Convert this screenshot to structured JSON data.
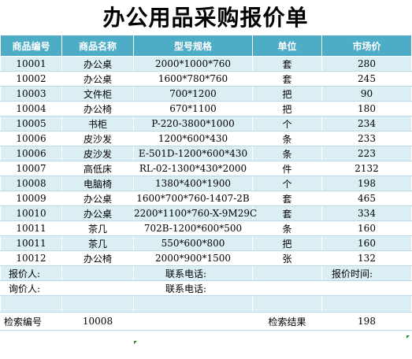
{
  "title": "办公用品采购报价单",
  "columns": [
    "商品编号",
    "商品名称",
    "型号规格",
    "单位",
    "市场价"
  ],
  "rows": [
    {
      "id": "10001",
      "name": "办公桌",
      "spec": "2000*1000*760",
      "unit": "套",
      "price": "280"
    },
    {
      "id": "10002",
      "name": "办公桌",
      "spec": "1600*780*760",
      "unit": "套",
      "price": "245"
    },
    {
      "id": "10003",
      "name": "文件柜",
      "spec": "700*1200",
      "unit": "把",
      "price": "90"
    },
    {
      "id": "10004",
      "name": "办公椅",
      "spec": "670*1100",
      "unit": "把",
      "price": "180"
    },
    {
      "id": "10005",
      "name": "书柜",
      "spec": "P-220-3800*1000",
      "unit": "个",
      "price": "234"
    },
    {
      "id": "10006",
      "name": "皮沙发",
      "spec": "1200*600*430",
      "unit": "条",
      "price": "233"
    },
    {
      "id": "10006",
      "name": "皮沙发",
      "spec": "E-501D-1200*600*430",
      "unit": "条",
      "price": "223"
    },
    {
      "id": "10007",
      "name": "高低床",
      "spec": "RL-02-1300*430*2000",
      "unit": "件",
      "price": "2132"
    },
    {
      "id": "10008",
      "name": "电脑椅",
      "spec": "1380*400*1900",
      "unit": "个",
      "price": "198"
    },
    {
      "id": "10009",
      "name": "办公桌",
      "spec": "1600*700*760-1407-2B",
      "unit": "套",
      "price": "465"
    },
    {
      "id": "10010",
      "name": "办公桌",
      "spec": "2200*1100*760-X-9M29C",
      "unit": "套",
      "price": "334"
    },
    {
      "id": "10011",
      "name": "茶几",
      "spec": "702B-1200*600*500",
      "unit": "条",
      "price": "160"
    },
    {
      "id": "10011",
      "name": "茶几",
      "spec": "550*600*800",
      "unit": "把",
      "price": "160"
    },
    {
      "id": "10012",
      "name": "办公椅",
      "spec": "2000*900*1500",
      "unit": "张",
      "price": "132"
    }
  ],
  "footer": {
    "quoter_label": "报价人:",
    "contact_label_1": "联系电话:",
    "quote_time_label": "报价时间:",
    "inquirer_label": "询价人:",
    "contact_label_2": "联系电话:"
  },
  "search": {
    "id_label": "检索编号",
    "id_value": "10008",
    "result_label": "检索结果",
    "result_value": "198"
  },
  "colors": {
    "header_bg": "#4eadc6",
    "band_bg": "#daeef4",
    "header_text": "#ffffff"
  }
}
